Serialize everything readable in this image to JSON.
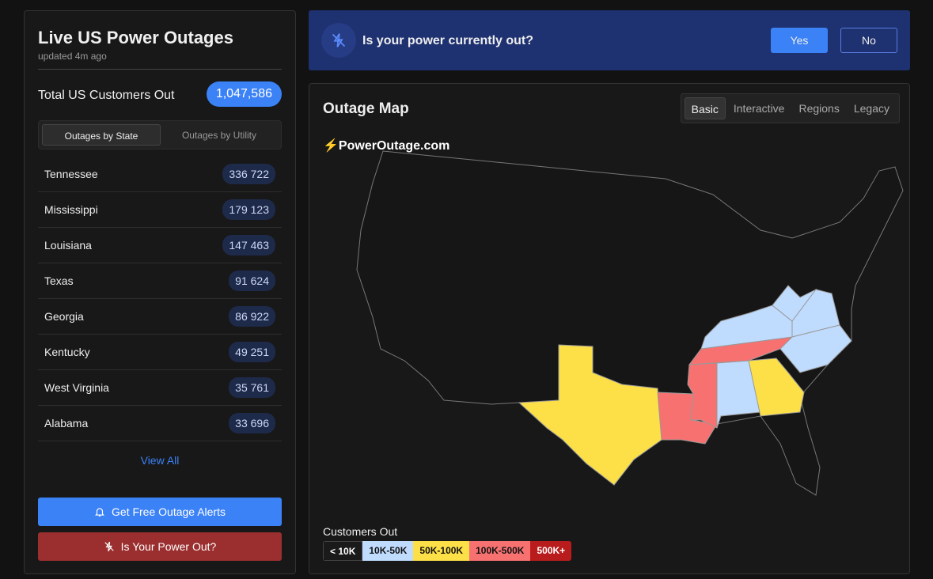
{
  "sidebar": {
    "title": "Live US Power Outages",
    "updated": "updated 4m ago",
    "total_label": "Total US Customers Out",
    "total_value": "1,047,586",
    "tabs": [
      "Outages by State",
      "Outages by Utility"
    ],
    "states": [
      {
        "name": "Tennessee",
        "count": "336 722"
      },
      {
        "name": "Mississippi",
        "count": "179 123"
      },
      {
        "name": "Louisiana",
        "count": "147 463"
      },
      {
        "name": "Texas",
        "count": "91 624"
      },
      {
        "name": "Georgia",
        "count": "86 922"
      },
      {
        "name": "Kentucky",
        "count": "49 251"
      },
      {
        "name": "West Virginia",
        "count": "35 761"
      },
      {
        "name": "Alabama",
        "count": "33 696"
      }
    ],
    "view_all": "View All",
    "alerts_button": "Get Free Outage Alerts",
    "power_out_button": "Is Your Power Out?"
  },
  "banner": {
    "question": "Is your power currently out?",
    "yes": "Yes",
    "no": "No"
  },
  "map": {
    "title": "Outage Map",
    "tabs": [
      "Basic",
      "Interactive",
      "Regions",
      "Legacy"
    ],
    "logo": "PowerOutage.com",
    "legend_title": "Customers Out",
    "legend": [
      {
        "label": "< 10K",
        "color": "#1a1a1a"
      },
      {
        "label": "10K-50K",
        "color": "#bfdbfe"
      },
      {
        "label": "50K-100K",
        "color": "#fde047"
      },
      {
        "label": "100K-500K",
        "color": "#f87171"
      },
      {
        "label": "500K+",
        "color": "#b91c1c"
      }
    ],
    "state_levels": {
      "Tennessee": "100K-500K",
      "Mississippi": "100K-500K",
      "Louisiana": "100K-500K",
      "Texas": "50K-100K",
      "Georgia": "50K-100K",
      "Kentucky": "10K-50K",
      "West Virginia": "10K-50K",
      "Alabama": "10K-50K",
      "Virginia": "10K-50K",
      "North Carolina": "10K-50K"
    }
  }
}
